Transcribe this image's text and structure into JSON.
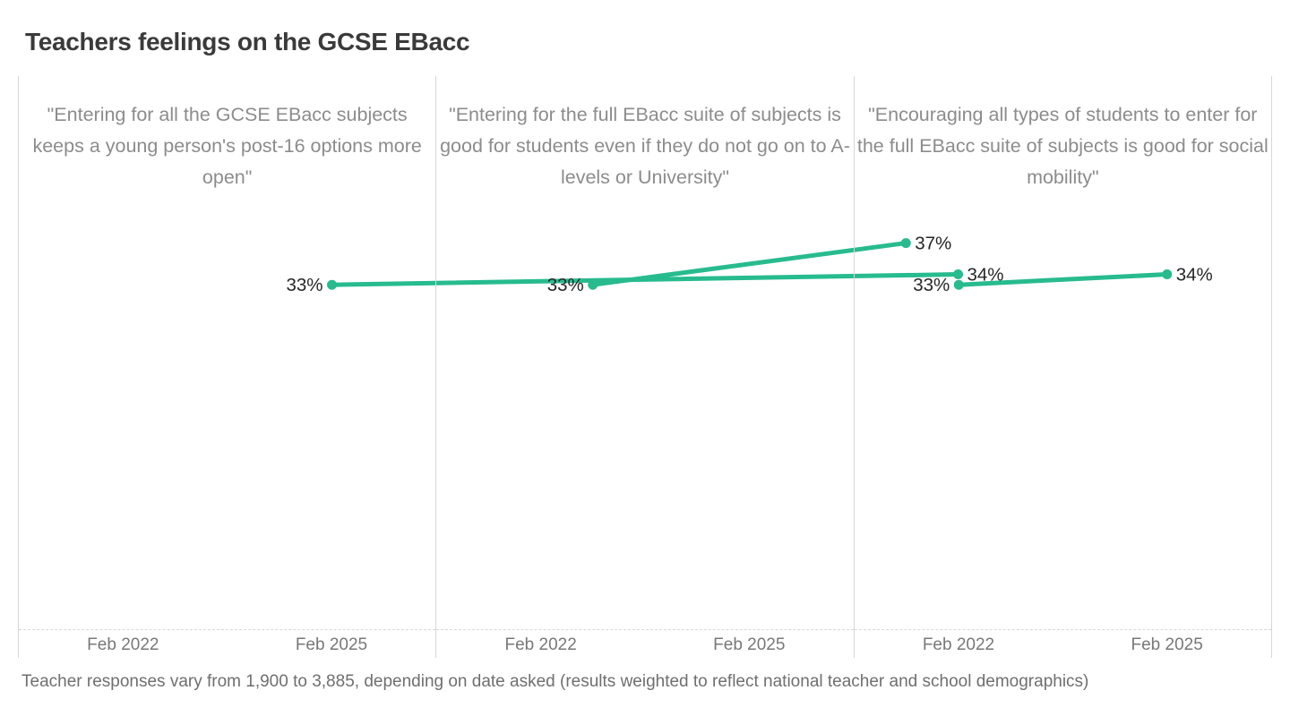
{
  "page": {
    "title": "Teachers feelings on the GCSE EBacc",
    "footnote": "Teacher responses vary from 1,900 to 3,885, depending on date asked (results weighted to reflect national teacher and school demographics)"
  },
  "chart_data": {
    "type": "line",
    "title": "Teachers feelings on the GCSE EBacc",
    "categories": [
      "Feb 2022",
      "Feb 2025"
    ],
    "value_suffix": "%",
    "ylim": [
      0,
      53
    ],
    "grid": false,
    "accent_color": "#27bb8e",
    "divider_color": "#d6d6d6",
    "panels": [
      {
        "subtitle": "\"Entering for all the GCSE EBacc subjects keeps a young person's post-16 options more open\"",
        "values": [
          33,
          34
        ],
        "labels": [
          "33%",
          "34%"
        ]
      },
      {
        "subtitle": "\"Entering for the full EBacc suite of subjects is good for students even if they do not go on to A-levels or University\"",
        "values": [
          33,
          37
        ],
        "labels": [
          "33%",
          "37%"
        ]
      },
      {
        "subtitle": "\"Encouraging all types of students to enter for the full EBacc suite of subjects is good for social mobility\"",
        "values": [
          33,
          34
        ],
        "labels": [
          "33%",
          "34%"
        ]
      }
    ]
  }
}
